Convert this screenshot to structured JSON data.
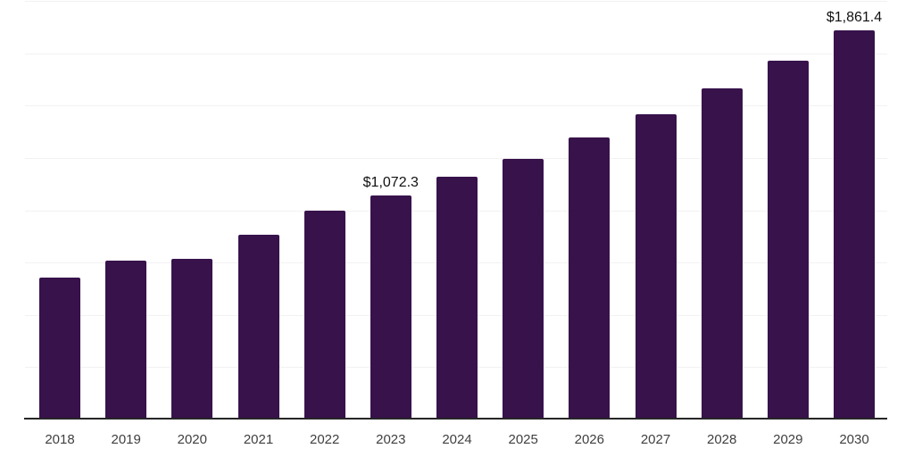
{
  "chart_style": {
    "background_color": "#ffffff",
    "bar_color": "#37124B",
    "axis_line_color": "#262626",
    "gridline_color": "#f2f2f2",
    "data_label_color": "#111111",
    "tick_label_color": "#3f3f3f"
  },
  "chart_data": {
    "type": "bar",
    "title": "",
    "xlabel": "",
    "ylabel": "",
    "categories": [
      "2018",
      "2019",
      "2020",
      "2021",
      "2022",
      "2023",
      "2024",
      "2025",
      "2026",
      "2027",
      "2028",
      "2029",
      "2030"
    ],
    "values": [
      680,
      760,
      768,
      882,
      996,
      1072.3,
      1160,
      1245,
      1347,
      1458,
      1581,
      1714,
      1861.4
    ],
    "data_labels": [
      "",
      "",
      "",
      "",
      "",
      "$1,072.3",
      "",
      "",
      "",
      "",
      "",
      "",
      "$1,861.4"
    ],
    "ylim": [
      0,
      2000
    ],
    "gridline_step": 250,
    "grid": true,
    "y_axis_tick_labels_visible": false,
    "legend": false,
    "legend_position": "none",
    "units_note": "values in dollars, labels formatted as $x,xxx.x"
  }
}
